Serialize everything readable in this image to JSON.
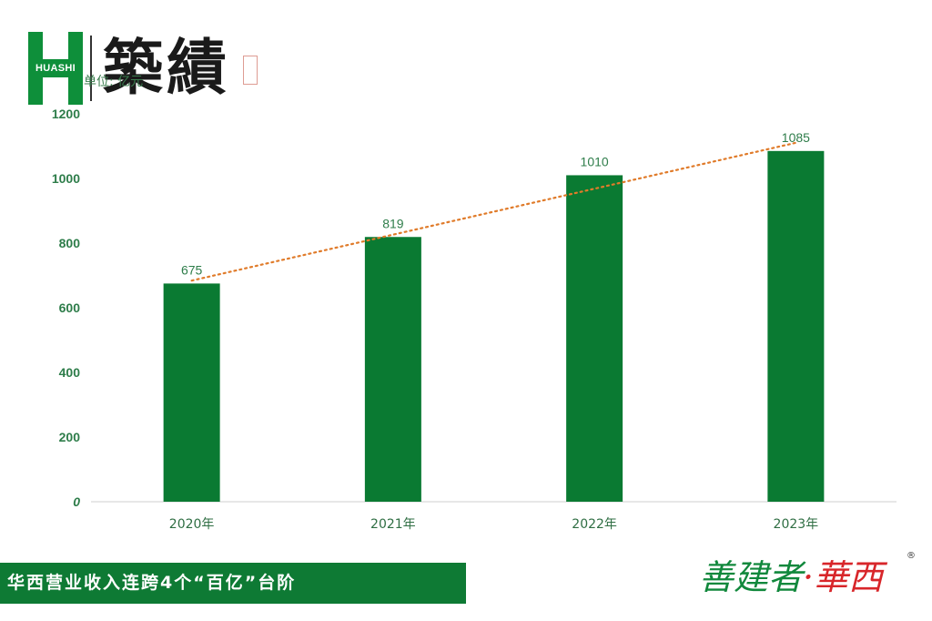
{
  "logo": {
    "brand_text": "HUASHI",
    "calligraphy": "築績"
  },
  "unit_label": "单位: 亿元",
  "chart_data": {
    "type": "bar",
    "categories": [
      "2020年",
      "2021年",
      "2022年",
      "2023年"
    ],
    "values": [
      675,
      819,
      1010,
      1085
    ],
    "ylim": [
      0,
      1200
    ],
    "yticks": [
      0,
      200,
      400,
      600,
      800,
      1000,
      1200
    ],
    "trendline": true,
    "grid": false,
    "colors": {
      "bar": "#0a7a32",
      "trend": "#e07b2a"
    }
  },
  "banner": {
    "text": "华西营业收入连跨4个“百亿”台阶"
  },
  "slogan": {
    "part_a": "善建者",
    "part_b": "·華西",
    "reg": "®"
  }
}
